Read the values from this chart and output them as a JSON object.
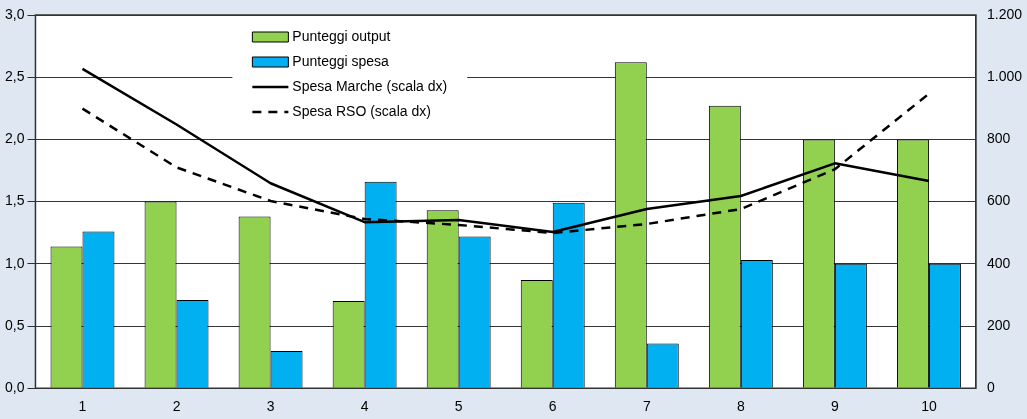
{
  "chart_data": {
    "type": "bar",
    "categories": [
      "1",
      "2",
      "3",
      "4",
      "5",
      "6",
      "7",
      "8",
      "9",
      "10"
    ],
    "series": [
      {
        "name": "Punteggi output",
        "color": "#92d050",
        "values": [
          1.14,
          1.5,
          1.38,
          0.7,
          1.43,
          0.87,
          2.62,
          2.27,
          2.0,
          2.0
        ]
      },
      {
        "name": "Punteggi spesa",
        "color": "#00b0f0",
        "values": [
          1.26,
          0.71,
          0.3,
          1.66,
          1.22,
          1.49,
          0.36,
          1.03,
          1.0,
          1.0
        ]
      },
      {
        "name": "Spesa Marche (scala dx)",
        "type": "line",
        "axis": "y2",
        "color": "#000000",
        "line_style": "solid",
        "values": [
          1027,
          848,
          659,
          534,
          541,
          502,
          576,
          618,
          723,
          666
        ]
      },
      {
        "name": "Spesa RSO (scala dx)",
        "type": "line",
        "axis": "y2",
        "color": "#000000",
        "line_style": "dashed",
        "values": [
          899,
          710,
          602,
          544,
          525,
          499,
          528,
          576,
          704,
          947
        ]
      }
    ],
    "ylim": [
      0,
      3
    ],
    "yticks": [
      {
        "value": 0,
        "label": "0,0"
      },
      {
        "value": 0.5,
        "label": "0,5"
      },
      {
        "value": 1,
        "label": "1,0"
      },
      {
        "value": 1.5,
        "label": "1,5"
      },
      {
        "value": 2,
        "label": "2,0"
      },
      {
        "value": 2.5,
        "label": "2,5"
      },
      {
        "value": 3,
        "label": "3,0"
      }
    ],
    "y2lim": [
      0,
      1200
    ],
    "y2ticks": [
      0,
      200,
      400,
      600,
      800,
      {
        "value": 1000,
        "label": "1.000"
      },
      {
        "value": 1200,
        "label": "1.200"
      }
    ],
    "grid": "y",
    "legend": "top",
    "marker": "none"
  }
}
